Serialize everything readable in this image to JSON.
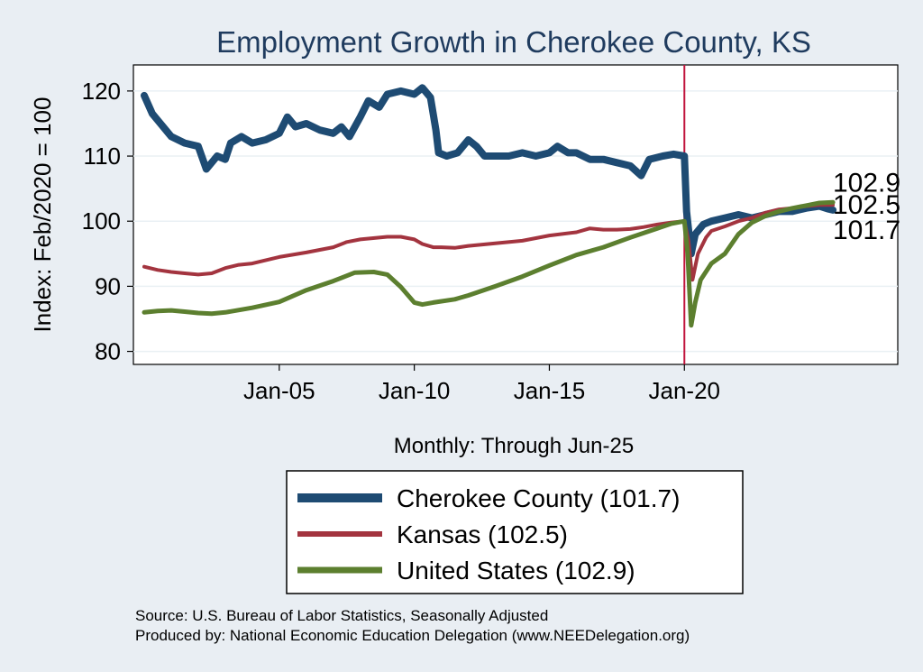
{
  "chart_data": {
    "type": "line",
    "title": "Employment Growth in Cherokee  County, KS",
    "ylabel": "Index: Feb/2020 = 100",
    "xlabel": "Monthly: Through Jun-25",
    "ylim": [
      78,
      124
    ],
    "xlim": [
      1999.6,
      2027.9
    ],
    "yticks": [
      80,
      90,
      100,
      110,
      120
    ],
    "xticks": [
      {
        "label": "Jan-05",
        "value": 2005.0
      },
      {
        "label": "Jan-10",
        "value": 2010.0
      },
      {
        "label": "Jan-15",
        "value": 2015.0
      },
      {
        "label": "Jan-20",
        "value": 2020.0
      }
    ],
    "vline": {
      "value": 2020.0,
      "color": "#c0143c"
    },
    "series": [
      {
        "name": "Cherokee  County",
        "legend": "Cherokee  County (101.7)",
        "end_label": "101.7",
        "color": "#1e4b73",
        "width": 8,
        "points": [
          [
            2000.0,
            119.3
          ],
          [
            2000.3,
            116.5
          ],
          [
            2000.7,
            114.5
          ],
          [
            2001.0,
            113.0
          ],
          [
            2001.5,
            112.0
          ],
          [
            2002.0,
            111.5
          ],
          [
            2002.3,
            108.0
          ],
          [
            2002.7,
            110.0
          ],
          [
            2003.0,
            109.5
          ],
          [
            2003.2,
            112.0
          ],
          [
            2003.6,
            113.0
          ],
          [
            2004.0,
            112.0
          ],
          [
            2004.5,
            112.5
          ],
          [
            2005.0,
            113.5
          ],
          [
            2005.3,
            116.0
          ],
          [
            2005.6,
            114.5
          ],
          [
            2006.0,
            115.0
          ],
          [
            2006.5,
            114.0
          ],
          [
            2007.0,
            113.5
          ],
          [
            2007.3,
            114.5
          ],
          [
            2007.6,
            113.0
          ],
          [
            2008.0,
            116.0
          ],
          [
            2008.3,
            118.5
          ],
          [
            2008.7,
            117.5
          ],
          [
            2009.0,
            119.5
          ],
          [
            2009.5,
            120.0
          ],
          [
            2010.0,
            119.5
          ],
          [
            2010.3,
            120.5
          ],
          [
            2010.6,
            119.0
          ],
          [
            2010.8,
            114.0
          ],
          [
            2010.9,
            110.5
          ],
          [
            2011.2,
            110.0
          ],
          [
            2011.6,
            110.5
          ],
          [
            2012.0,
            112.5
          ],
          [
            2012.3,
            111.5
          ],
          [
            2012.6,
            110.0
          ],
          [
            2013.0,
            110.0
          ],
          [
            2013.5,
            110.0
          ],
          [
            2014.0,
            110.5
          ],
          [
            2014.5,
            110.0
          ],
          [
            2015.0,
            110.5
          ],
          [
            2015.3,
            111.5
          ],
          [
            2015.7,
            110.5
          ],
          [
            2016.0,
            110.5
          ],
          [
            2016.5,
            109.5
          ],
          [
            2017.0,
            109.5
          ],
          [
            2017.5,
            109.0
          ],
          [
            2018.0,
            108.5
          ],
          [
            2018.4,
            107.0
          ],
          [
            2018.7,
            109.5
          ],
          [
            2019.2,
            110.0
          ],
          [
            2019.6,
            110.3
          ],
          [
            2020.0,
            110.0
          ],
          [
            2020.08,
            101.5
          ],
          [
            2020.25,
            95.0
          ],
          [
            2020.4,
            98.0
          ],
          [
            2020.7,
            99.5
          ],
          [
            2021.0,
            100.0
          ],
          [
            2021.5,
            100.5
          ],
          [
            2022.0,
            101.0
          ],
          [
            2022.5,
            100.5
          ],
          [
            2023.0,
            101.0
          ],
          [
            2023.5,
            101.5
          ],
          [
            2024.0,
            101.5
          ],
          [
            2024.5,
            102.0
          ],
          [
            2025.0,
            102.3
          ],
          [
            2025.3,
            101.9
          ],
          [
            2025.5,
            101.7
          ]
        ]
      },
      {
        "name": "Kansas",
        "legend": "Kansas (102.5)",
        "end_label": "102.5",
        "color": "#a3343f",
        "width": 4,
        "points": [
          [
            2000.0,
            93.0
          ],
          [
            2000.5,
            92.5
          ],
          [
            2001.0,
            92.2
          ],
          [
            2001.5,
            92.0
          ],
          [
            2002.0,
            91.8
          ],
          [
            2002.5,
            92.0
          ],
          [
            2003.0,
            92.8
          ],
          [
            2003.5,
            93.3
          ],
          [
            2004.0,
            93.5
          ],
          [
            2005.0,
            94.5
          ],
          [
            2006.0,
            95.2
          ],
          [
            2007.0,
            96.0
          ],
          [
            2007.5,
            96.8
          ],
          [
            2008.0,
            97.2
          ],
          [
            2009.0,
            97.6
          ],
          [
            2009.5,
            97.6
          ],
          [
            2010.0,
            97.2
          ],
          [
            2010.3,
            96.5
          ],
          [
            2010.7,
            96.0
          ],
          [
            2011.0,
            96.0
          ],
          [
            2011.5,
            95.9
          ],
          [
            2012.0,
            96.2
          ],
          [
            2013.0,
            96.6
          ],
          [
            2014.0,
            97.0
          ],
          [
            2015.0,
            97.8
          ],
          [
            2016.0,
            98.3
          ],
          [
            2016.5,
            98.9
          ],
          [
            2017.0,
            98.7
          ],
          [
            2017.5,
            98.7
          ],
          [
            2018.0,
            98.8
          ],
          [
            2018.5,
            99.1
          ],
          [
            2019.0,
            99.5
          ],
          [
            2019.5,
            99.8
          ],
          [
            2020.0,
            100.0
          ],
          [
            2020.15,
            97.0
          ],
          [
            2020.3,
            91.0
          ],
          [
            2020.5,
            95.0
          ],
          [
            2020.8,
            97.5
          ],
          [
            2021.0,
            98.5
          ],
          [
            2021.5,
            99.2
          ],
          [
            2022.0,
            100.0
          ],
          [
            2022.5,
            100.5
          ],
          [
            2023.0,
            101.3
          ],
          [
            2023.5,
            101.8
          ],
          [
            2024.0,
            102.0
          ],
          [
            2024.5,
            102.3
          ],
          [
            2025.0,
            102.5
          ],
          [
            2025.5,
            102.5
          ]
        ]
      },
      {
        "name": "United States",
        "legend": "United States (102.9)",
        "end_label": "102.9",
        "color": "#5c7f2f",
        "width": 5,
        "points": [
          [
            2000.0,
            86.0
          ],
          [
            2000.5,
            86.2
          ],
          [
            2001.0,
            86.3
          ],
          [
            2001.5,
            86.1
          ],
          [
            2002.0,
            85.9
          ],
          [
            2002.5,
            85.8
          ],
          [
            2003.0,
            86.0
          ],
          [
            2004.0,
            86.7
          ],
          [
            2005.0,
            87.6
          ],
          [
            2006.0,
            89.4
          ],
          [
            2007.0,
            90.8
          ],
          [
            2007.8,
            92.1
          ],
          [
            2008.5,
            92.2
          ],
          [
            2009.0,
            91.8
          ],
          [
            2009.5,
            89.9
          ],
          [
            2010.0,
            87.5
          ],
          [
            2010.3,
            87.2
          ],
          [
            2010.7,
            87.5
          ],
          [
            2011.5,
            88.0
          ],
          [
            2012.0,
            88.6
          ],
          [
            2013.0,
            90.0
          ],
          [
            2014.0,
            91.5
          ],
          [
            2015.0,
            93.2
          ],
          [
            2016.0,
            94.8
          ],
          [
            2017.0,
            96.0
          ],
          [
            2018.0,
            97.5
          ],
          [
            2019.0,
            98.9
          ],
          [
            2019.5,
            99.6
          ],
          [
            2020.0,
            100.0
          ],
          [
            2020.12,
            95.0
          ],
          [
            2020.25,
            84.0
          ],
          [
            2020.4,
            87.5
          ],
          [
            2020.6,
            91.0
          ],
          [
            2021.0,
            93.5
          ],
          [
            2021.5,
            95.0
          ],
          [
            2022.0,
            98.0
          ],
          [
            2022.5,
            99.8
          ],
          [
            2023.0,
            100.8
          ],
          [
            2023.5,
            101.5
          ],
          [
            2024.0,
            102.0
          ],
          [
            2024.5,
            102.4
          ],
          [
            2025.0,
            102.8
          ],
          [
            2025.5,
            102.9
          ]
        ]
      }
    ]
  },
  "source": {
    "line1": "Source: U.S. Bureau of Labor Statistics, Seasonally Adjusted",
    "line2": "Produced by: National Economic Education Delegation (www.NEEDelegation.org)"
  }
}
